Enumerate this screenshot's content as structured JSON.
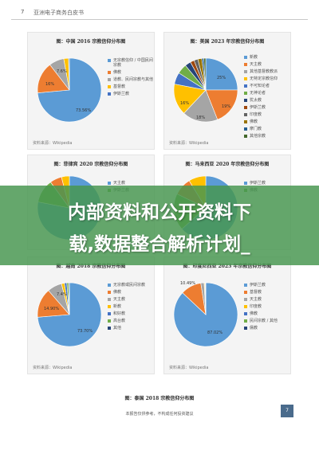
{
  "header": {
    "page_number": "7",
    "title": "亚洲电子商务白皮书"
  },
  "panels": [
    {
      "title": "图：中国 2016 宗教信仰分布图",
      "source": "资料来源：Wikipedia",
      "legend": [
        "无宗教信仰 / 中国民间宗教",
        "佛教",
        "道教、民间宗教与其他",
        "基督教",
        "伊斯兰教"
      ],
      "pie_labels": [
        "73.56%",
        "16%",
        "7.6%"
      ],
      "colors": [
        "#5b9bd5",
        "#ed7d31",
        "#a5a5a5",
        "#ffc000",
        "#4472c4"
      ],
      "values": [
        73.56,
        16,
        7.6,
        2.4,
        0.44
      ]
    },
    {
      "title": "图：美国 2023 年宗教信仰分布图",
      "source": "资料来源：Wikipedia",
      "legend": [
        "新教",
        "天主教",
        "其他基督教教派",
        "无特定宗教信仰",
        "不可知论者",
        "无神论者",
        "犹太教",
        "伊斯兰教",
        "印度教",
        "佛教",
        "摩门教",
        "其他宗教"
      ],
      "pie_labels": [
        "25%",
        "19%",
        "18%",
        "16%"
      ],
      "colors": [
        "#5b9bd5",
        "#ed7d31",
        "#a5a5a5",
        "#ffc000",
        "#4472c4",
        "#70ad47",
        "#264478",
        "#9e480e",
        "#636363",
        "#997300",
        "#255e91",
        "#43682b"
      ],
      "values": [
        25,
        19,
        18,
        16,
        6,
        5,
        3,
        2,
        2,
        2,
        1,
        1
      ]
    },
    {
      "title": "图：菲律宾 2020 宗教信仰分布图",
      "source": "",
      "legend": [
        "天主教",
        "伊斯兰教"
      ],
      "pie_labels": [],
      "colors": [
        "#5b9bd5",
        "#70ad47",
        "#ed7d31",
        "#ffc000"
      ],
      "values": [
        78,
        12,
        6,
        4
      ]
    },
    {
      "title": "图：马来西亚 2020 年宗教信仰分布图",
      "source": "",
      "legend": [
        "伊斯兰教",
        "佛教"
      ],
      "pie_labels": [],
      "colors": [
        "#5b9bd5",
        "#70ad47",
        "#ed7d31",
        "#ffc000"
      ],
      "values": [
        63.5,
        18.7,
        9.1,
        8.7
      ]
    },
    {
      "title": "图：越南 2018 宗教信仰分布图",
      "source": "资料来源：Wikipedia",
      "legend": [
        "无宗教或民间宗教",
        "佛教",
        "天主教",
        "新教",
        "和好教",
        "高台教",
        "其他"
      ],
      "pie_labels": [
        "73.70%",
        "14.90%",
        "7.4%"
      ],
      "colors": [
        "#5b9bd5",
        "#ed7d31",
        "#a5a5a5",
        "#ffc000",
        "#4472c4",
        "#70ad47",
        "#264478"
      ],
      "values": [
        73.7,
        14.9,
        7.4,
        1.5,
        1.2,
        0.9,
        0.4
      ]
    },
    {
      "title": "图：印度尼西亚 2023 年宗教信仰分布图",
      "source": "资料来源：Wikipedia",
      "legend": [
        "伊斯兰教",
        "基督教",
        "天主教",
        "印度教",
        "佛教",
        "民间宗教 / 其他",
        "儒教"
      ],
      "pie_labels": [
        "87.02%",
        "10.49%"
      ],
      "colors": [
        "#5b9bd5",
        "#ed7d31",
        "#a5a5a5",
        "#ffc000",
        "#4472c4",
        "#70ad47",
        "#264478"
      ],
      "values": [
        87.02,
        10.49,
        1.69,
        0.4,
        0.2,
        0.15,
        0.05
      ]
    }
  ],
  "banner": {
    "line1": "内部资料和公开资料下",
    "line2": "载,数据整合解析计划_"
  },
  "bottom_title": "图：泰国 2018 宗教信仰分布图",
  "footer": "本报告仅供参考，不构成任何投资建议",
  "page_box": "7"
}
